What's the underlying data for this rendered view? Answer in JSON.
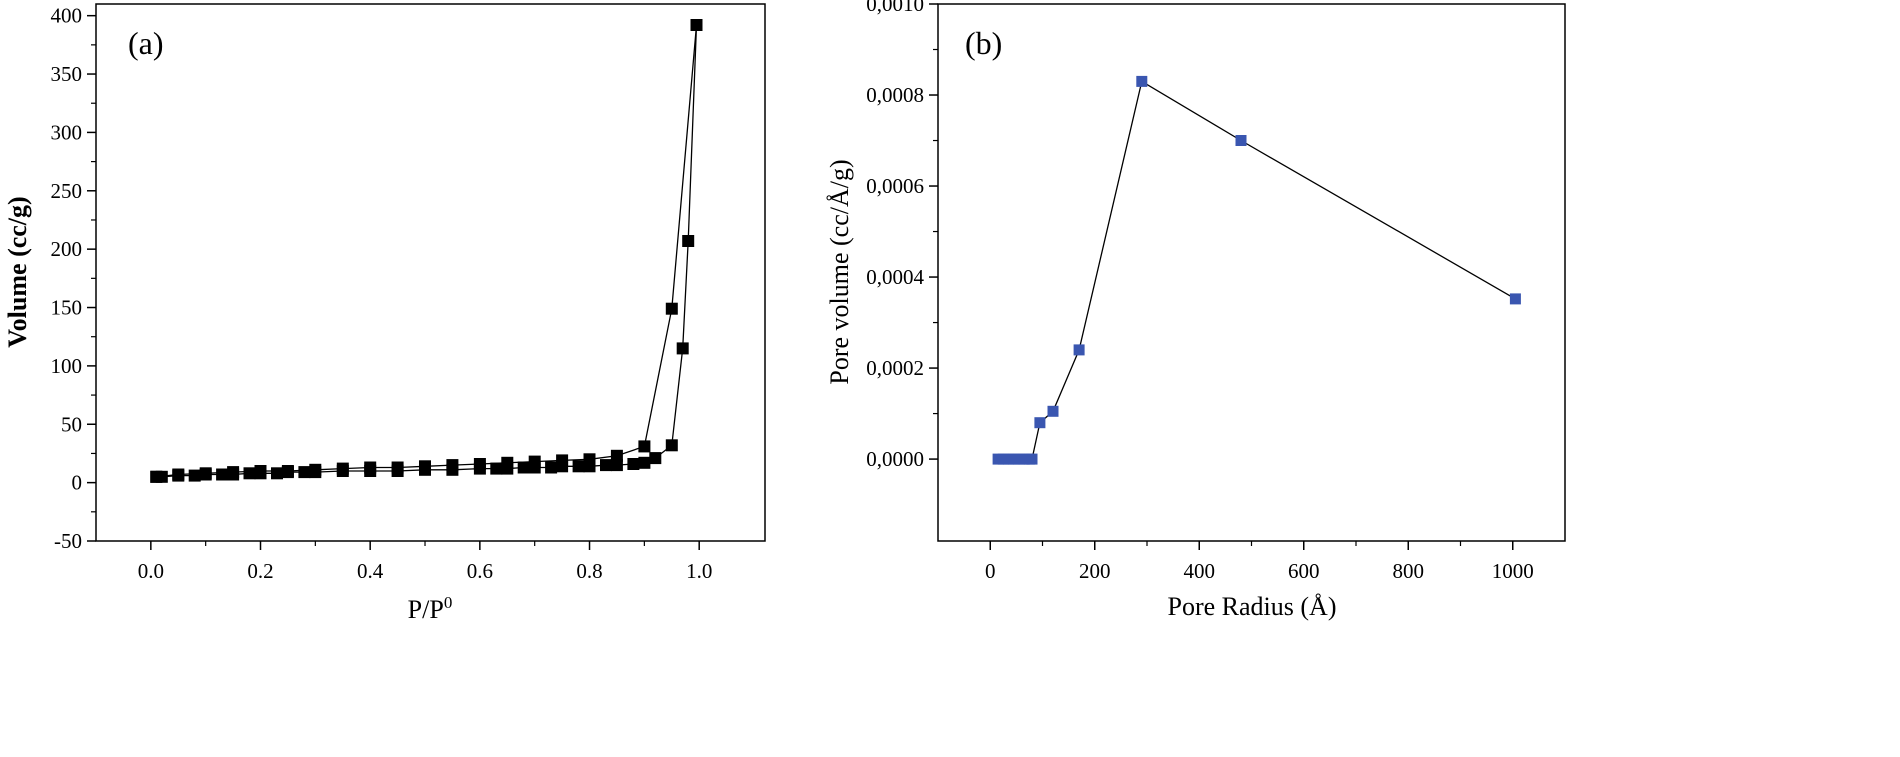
{
  "chart_data": [
    {
      "type": "scatter",
      "panel_label": "(a)",
      "xlabel": "P/P0",
      "xlabel_main": "P/P",
      "xlabel_sup": "0",
      "ylabel": "Volume (cc/g)",
      "xlim": [
        -0.1,
        1.12
      ],
      "ylim": [
        -50,
        410
      ],
      "xticks": [
        0.0,
        0.2,
        0.4,
        0.6,
        0.8,
        1.0
      ],
      "xtick_labels": [
        "0.0",
        "0.2",
        "0.4",
        "0.6",
        "0.8",
        "1.0"
      ],
      "yticks": [
        -50,
        0,
        50,
        100,
        150,
        200,
        250,
        300,
        350,
        400
      ],
      "ytick_labels": [
        "-50",
        "0",
        "50",
        "100",
        "150",
        "200",
        "250",
        "300",
        "350",
        "400"
      ],
      "marker_color": "#000000",
      "line_color": "#000000",
      "marker_shape": "square",
      "series": [
        {
          "x": [
            0.01,
            0.02,
            0.05,
            0.08,
            0.1,
            0.13,
            0.15,
            0.18,
            0.2,
            0.23,
            0.25,
            0.28,
            0.3,
            0.35,
            0.4,
            0.45,
            0.5,
            0.55,
            0.6,
            0.63,
            0.65,
            0.68,
            0.7,
            0.73,
            0.75,
            0.78,
            0.8,
            0.83,
            0.85,
            0.88,
            0.9,
            0.92,
            0.95,
            0.97,
            0.98,
            0.995
          ],
          "y": [
            5,
            5,
            6,
            6,
            7,
            7,
            7,
            8,
            8,
            8,
            9,
            9,
            9,
            10,
            10,
            10,
            11,
            11,
            12,
            12,
            12,
            13,
            13,
            13,
            14,
            14,
            14,
            15,
            15,
            16,
            17,
            21,
            32,
            115,
            207,
            392
          ]
        },
        {
          "x": [
            0.995,
            0.95,
            0.9,
            0.85,
            0.8,
            0.75,
            0.7,
            0.65,
            0.6,
            0.55,
            0.5,
            0.45,
            0.4,
            0.35,
            0.3,
            0.25,
            0.2,
            0.15,
            0.1,
            0.05,
            0.01
          ],
          "y": [
            392,
            149,
            31,
            23,
            20,
            19,
            18,
            17,
            16,
            15,
            14,
            13,
            13,
            12,
            11,
            10,
            10,
            9,
            8,
            7,
            5
          ]
        }
      ],
      "grid": false,
      "legend": "none"
    },
    {
      "type": "line",
      "panel_label": "(b)",
      "xlabel": "Pore Radius (Å)",
      "ylabel": "Pore volume (cc/Å/g)",
      "xlim": [
        -100,
        1100
      ],
      "ylim": [
        -0.00018,
        0.001
      ],
      "xticks": [
        0,
        200,
        400,
        600,
        800,
        1000
      ],
      "xtick_labels": [
        "0",
        "200",
        "400",
        "600",
        "800",
        "1000"
      ],
      "yticks": [
        0,
        0.0002,
        0.0004,
        0.0006,
        0.0008,
        0.001
      ],
      "ytick_labels": [
        "0,0000",
        "0,0002",
        "0,0004",
        "0,0006",
        "0,0008",
        "0,0010"
      ],
      "marker_color": "#3a56b0",
      "line_color": "#000000",
      "marker_shape": "square",
      "series": [
        {
          "x": [
            15,
            25,
            35,
            45,
            55,
            65,
            75,
            80,
            95,
            120,
            170,
            290,
            480,
            1005
          ],
          "y": [
            0,
            0,
            0,
            0,
            0,
            0,
            0,
            0,
            8e-05,
            0.000105,
            0.00024,
            0.00083,
            0.0007,
            0.000352
          ]
        }
      ],
      "grid": false,
      "legend": "none"
    }
  ]
}
